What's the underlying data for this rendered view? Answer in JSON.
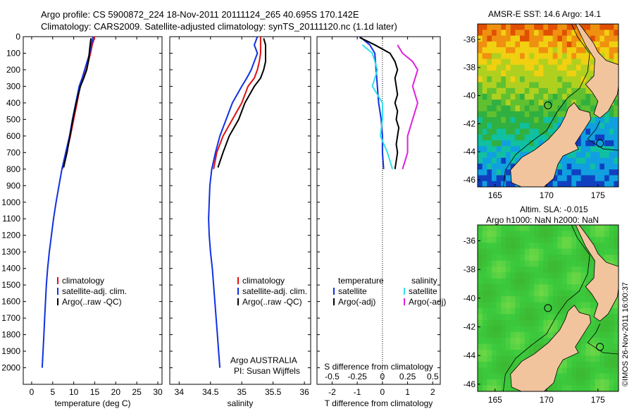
{
  "title_line1": "Argo profile: CS 5900872_224 18-Nov-2011 20111124_265 40.695S 170.142E",
  "title_line2": "Climatology: CARS2009. Satellite-adjusted climatology: synTS_20111120.nc (1.1d later)",
  "sst_title": "AMSR-E SST: 14.6 Argo: 14.1",
  "sla_title1": "Altim. SLA: -0.015",
  "sla_title2": "Argo h1000: NaN h2000: NaN",
  "copyright": "©IMOS 26-Nov-2011 16:00:37",
  "colors": {
    "climatology": "#e01010",
    "satellite": "#1030e0",
    "argo": "#000000",
    "sat_s": "#30e0e8",
    "argo_s": "#e020e0",
    "land": "#f2c49e"
  },
  "chart_data": [
    {
      "type": "line",
      "name": "temperature",
      "xlabel": "temperature (deg C)",
      "ylabel": "",
      "xlim": [
        -2,
        31
      ],
      "ylim": [
        2100,
        0
      ],
      "xticks": [
        0,
        5,
        10,
        15,
        20,
        25,
        30
      ],
      "yticks": [
        0,
        100,
        200,
        300,
        400,
        500,
        600,
        700,
        800,
        900,
        1000,
        1100,
        1200,
        1300,
        1400,
        1500,
        1600,
        1700,
        1800,
        1900,
        2000
      ],
      "legend": [
        "climatology",
        "satellite-adj. clim.",
        "Argo(..raw -QC)"
      ],
      "series": [
        {
          "name": "climatology",
          "color": "#e01010",
          "points": [
            [
              15,
              0
            ],
            [
              14.4,
              50
            ],
            [
              14,
              100
            ],
            [
              13.5,
              150
            ],
            [
              13,
              200
            ],
            [
              12.3,
              250
            ],
            [
              11.5,
              300
            ],
            [
              10.8,
              400
            ],
            [
              10,
              500
            ],
            [
              9.2,
              600
            ],
            [
              8.3,
              700
            ],
            [
              7.3,
              800
            ]
          ]
        },
        {
          "name": "satellite-adj. clim.",
          "color": "#1030e0",
          "points": [
            [
              14.6,
              0
            ],
            [
              14.2,
              50
            ],
            [
              13.8,
              100
            ],
            [
              13.2,
              150
            ],
            [
              12.6,
              200
            ],
            [
              12,
              250
            ],
            [
              11.3,
              300
            ],
            [
              10.5,
              400
            ],
            [
              9.7,
              500
            ],
            [
              9,
              600
            ],
            [
              8.1,
              700
            ],
            [
              7.2,
              800
            ],
            [
              6.5,
              900
            ],
            [
              5.8,
              1000
            ],
            [
              5.2,
              1100
            ],
            [
              4.7,
              1200
            ],
            [
              4.2,
              1300
            ],
            [
              3.8,
              1400
            ],
            [
              3.5,
              1500
            ],
            [
              3.3,
              1600
            ],
            [
              3.1,
              1700
            ],
            [
              2.9,
              1800
            ],
            [
              2.7,
              1900
            ],
            [
              2.5,
              2000
            ]
          ]
        },
        {
          "name": "Argo(..raw -QC)",
          "color": "#000000",
          "points": [
            [
              14.1,
              10
            ],
            [
              13.9,
              50
            ],
            [
              13.7,
              100
            ],
            [
              13.5,
              150
            ],
            [
              13.1,
              200
            ],
            [
              12.4,
              250
            ],
            [
              11.6,
              300
            ],
            [
              10.6,
              400
            ],
            [
              9.8,
              500
            ],
            [
              9.1,
              600
            ],
            [
              8.4,
              700
            ],
            [
              7.6,
              790
            ]
          ]
        }
      ]
    },
    {
      "type": "line",
      "name": "salinity",
      "xlabel": "salinity",
      "ylabel": "",
      "xlim": [
        33.85,
        36.1
      ],
      "ylim": [
        2100,
        0
      ],
      "xticks": [
        34,
        34.5,
        35,
        35.5,
        36
      ],
      "xticklabels": [
        "34",
        "34.5",
        "35",
        "35.5",
        "36"
      ],
      "legend": [
        "climatology",
        "satellite-adj. clim.",
        "Argo(..raw -QC)"
      ],
      "annotation": [
        "Argo AUSTRALIA",
        "PI: Susan Wijffels"
      ],
      "series": [
        {
          "name": "climatology",
          "color": "#e01010",
          "points": [
            [
              35.3,
              0
            ],
            [
              35.3,
              100
            ],
            [
              35.28,
              150
            ],
            [
              35.25,
              200
            ],
            [
              35.2,
              250
            ],
            [
              35.1,
              300
            ],
            [
              35.0,
              400
            ],
            [
              34.85,
              500
            ],
            [
              34.7,
              600
            ],
            [
              34.6,
              700
            ],
            [
              34.55,
              800
            ]
          ]
        },
        {
          "name": "satellite-adj. clim.",
          "color": "#1030e0",
          "points": [
            [
              35.25,
              0
            ],
            [
              35.2,
              50
            ],
            [
              35.25,
              100
            ],
            [
              35.2,
              150
            ],
            [
              35.15,
              200
            ],
            [
              35.08,
              250
            ],
            [
              35.0,
              300
            ],
            [
              34.85,
              400
            ],
            [
              34.75,
              500
            ],
            [
              34.65,
              600
            ],
            [
              34.58,
              700
            ],
            [
              34.52,
              800
            ],
            [
              34.49,
              900
            ],
            [
              34.48,
              1000
            ],
            [
              34.47,
              1100
            ],
            [
              34.48,
              1200
            ],
            [
              34.5,
              1300
            ],
            [
              34.53,
              1400
            ],
            [
              34.55,
              1500
            ],
            [
              34.57,
              1600
            ],
            [
              34.59,
              1700
            ],
            [
              34.61,
              1800
            ],
            [
              34.63,
              1900
            ],
            [
              34.65,
              2000
            ]
          ]
        },
        {
          "name": "Argo(..raw -QC)",
          "color": "#000000",
          "points": [
            [
              35.35,
              10
            ],
            [
              35.38,
              50
            ],
            [
              35.38,
              100
            ],
            [
              35.38,
              150
            ],
            [
              35.35,
              200
            ],
            [
              35.3,
              250
            ],
            [
              35.2,
              300
            ],
            [
              35.05,
              400
            ],
            [
              34.95,
              500
            ],
            [
              34.8,
              600
            ],
            [
              34.7,
              700
            ],
            [
              34.62,
              790
            ]
          ]
        }
      ]
    },
    {
      "type": "line",
      "name": "difference",
      "xlabel": "T difference from climatology",
      "xlabel2": "S difference from climatology",
      "xlim": [
        -2.6,
        2.3
      ],
      "ylim": [
        2100,
        0
      ],
      "xticks": [
        -2,
        -1,
        0,
        1,
        2
      ],
      "xticks_s": [
        -0.5,
        -0.25,
        0,
        0.25,
        0.5
      ],
      "xticklabels_s": [
        "-0.5",
        "-0.25",
        "0",
        "0.25",
        "0.5"
      ],
      "legend_t": {
        "heading": "temperature",
        "items": [
          "satellite",
          "Argo(-adj)"
        ]
      },
      "legend_s": {
        "heading": "salinity",
        "items": [
          "satellite",
          "Argo(-adj)"
        ]
      },
      "series": [
        {
          "name": "satellite",
          "color": "#1030e0",
          "points": [
            [
              -0.9,
              0
            ],
            [
              -0.5,
              50
            ],
            [
              -0.3,
              100
            ],
            [
              -0.25,
              200
            ],
            [
              -0.2,
              300
            ],
            [
              -0.15,
              400
            ],
            [
              -0.05,
              500
            ],
            [
              0,
              600
            ],
            [
              0,
              700
            ],
            [
              0.05,
              800
            ]
          ]
        },
        {
          "name": "Argo(-adj)",
          "color": "#000000",
          "points": [
            [
              -0.9,
              5
            ],
            [
              -0.3,
              50
            ],
            [
              0.3,
              100
            ],
            [
              0.5,
              150
            ],
            [
              0.6,
              200
            ],
            [
              0.5,
              250
            ],
            [
              0.55,
              300
            ],
            [
              0.6,
              350
            ],
            [
              0.5,
              400
            ],
            [
              0.6,
              450
            ],
            [
              0.55,
              500
            ],
            [
              0.65,
              550
            ],
            [
              0.6,
              600
            ],
            [
              0.55,
              650
            ],
            [
              0.6,
              700
            ],
            [
              0.55,
              750
            ],
            [
              0.5,
              800
            ]
          ]
        },
        {
          "name": "satellite (S)",
          "color": "#30e0e8",
          "points": [
            [
              -0.2,
              50
            ],
            [
              -0.1,
              100
            ],
            [
              -0.05,
              200
            ],
            [
              -0.1,
              300
            ],
            [
              0,
              400
            ],
            [
              0,
              500
            ],
            [
              -0.02,
              600
            ],
            [
              0.05,
              700
            ],
            [
              0.1,
              800
            ]
          ]
        },
        {
          "name": "Argo(-adj) (S)",
          "color": "#e020e0",
          "points": [
            [
              0.15,
              50
            ],
            [
              0.2,
              100
            ],
            [
              0.3,
              150
            ],
            [
              0.35,
              200
            ],
            [
              0.3,
              300
            ],
            [
              0.35,
              400
            ],
            [
              0.3,
              500
            ],
            [
              0.25,
              600
            ],
            [
              0.25,
              700
            ],
            [
              0.2,
              800
            ]
          ]
        }
      ]
    },
    {
      "type": "heatmap",
      "name": "AMSR-E SST map",
      "xticks": [
        165,
        170,
        175
      ],
      "yticks": [
        -36,
        -38,
        -40,
        -42,
        -44,
        -46
      ],
      "xlim": [
        163.3,
        177
      ],
      "ylim": [
        -46.5,
        -34.9
      ],
      "argo_position": [
        170.142,
        -40.695
      ],
      "second_marker": [
        175.2,
        -43.4
      ]
    },
    {
      "type": "heatmap",
      "name": "Altimeter SLA map",
      "xticks": [
        165,
        170,
        175
      ],
      "yticks": [
        -36,
        -38,
        -40,
        -42,
        -44,
        -46
      ],
      "xlim": [
        163.3,
        177
      ],
      "ylim": [
        -46.5,
        -34.9
      ],
      "argo_position": [
        170.142,
        -40.695
      ],
      "second_marker": [
        175.2,
        -43.4
      ]
    }
  ]
}
